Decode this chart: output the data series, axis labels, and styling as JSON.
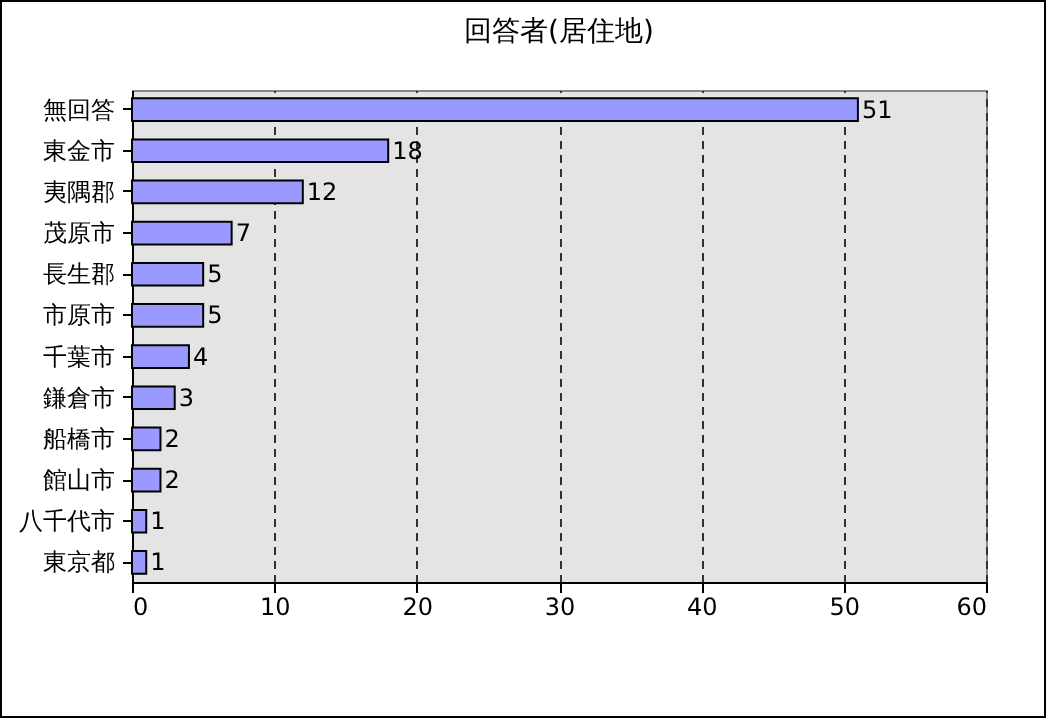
{
  "chart_data": {
    "type": "bar",
    "orientation": "horizontal",
    "title": "回答者(居住地)",
    "categories": [
      "無回答",
      "東金市",
      "夷隅郡",
      "茂原市",
      "長生郡",
      "市原市",
      "千葉市",
      "鎌倉市",
      "船橋市",
      "館山市",
      "八千代市",
      "東京都"
    ],
    "values": [
      51,
      18,
      12,
      7,
      5,
      5,
      4,
      3,
      2,
      2,
      1,
      1
    ],
    "color": "#9999ff",
    "xlim": [
      0,
      60
    ],
    "xticks": [
      0,
      10,
      20,
      30,
      40,
      50,
      60
    ],
    "grid": "x",
    "data_labels": true
  }
}
